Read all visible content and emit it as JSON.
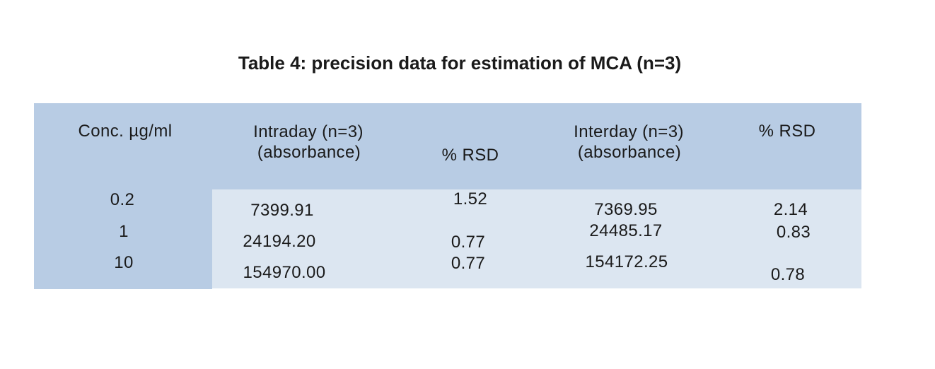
{
  "caption": "Table 4: precision data for estimation of MCA (n=3)",
  "table": {
    "columns": [
      {
        "id": "conc",
        "label": "Conc. µg/ml"
      },
      {
        "id": "intraday",
        "label": "Intraday (n=3)",
        "sublabel": "(absorbance)"
      },
      {
        "id": "rsd_intraday",
        "label": "% RSD"
      },
      {
        "id": "interday",
        "label": "Interday (n=3)",
        "sublabel": "(absorbance)"
      },
      {
        "id": "rsd_interday",
        "label": "% RSD"
      }
    ],
    "rows": [
      {
        "conc": "0.2",
        "intraday": "7399.91",
        "rsd_intraday": "1.52",
        "interday": "7369.95",
        "rsd_interday": "2.14"
      },
      {
        "conc": "1",
        "intraday": "24194.20",
        "rsd_intraday": "0.77",
        "interday": "24485.17",
        "rsd_interday": "0.83"
      },
      {
        "conc": "10",
        "intraday": "154970.00",
        "rsd_intraday": "0.77",
        "interday": "154172.25",
        "rsd_interday": "0.78"
      }
    ]
  },
  "colors": {
    "page_bg": "#ffffff",
    "header_bg": "#b8cce4",
    "body_bg": "#dce6f1",
    "text": "#1a1a1a"
  }
}
